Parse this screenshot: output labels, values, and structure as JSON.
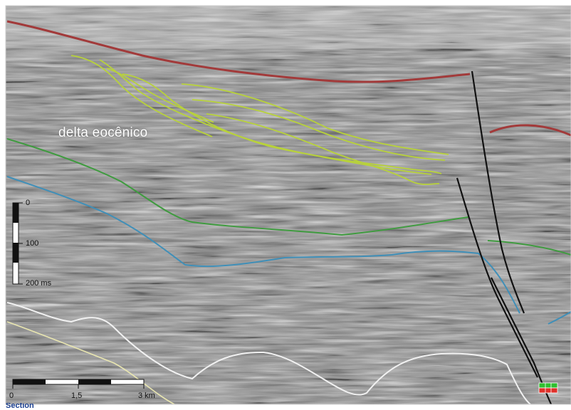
{
  "annotation": "delta eocênico",
  "time_scale": {
    "ticks": [
      "0",
      "100",
      "200 ms"
    ]
  },
  "distance_scale": {
    "ticks": [
      "0",
      "1,5",
      "3 km"
    ]
  },
  "caption_fragment": "Section",
  "colors": {
    "red_horizon": "#a23a3a",
    "delta_clinoforms": "#b8d23a",
    "green_horizon": "#3f9b3f",
    "blue_horizon": "#3f8fb8",
    "white_horizon": "#f2f2f2",
    "yellow_horizon": "#e9e6b0",
    "fault": "#111111"
  }
}
